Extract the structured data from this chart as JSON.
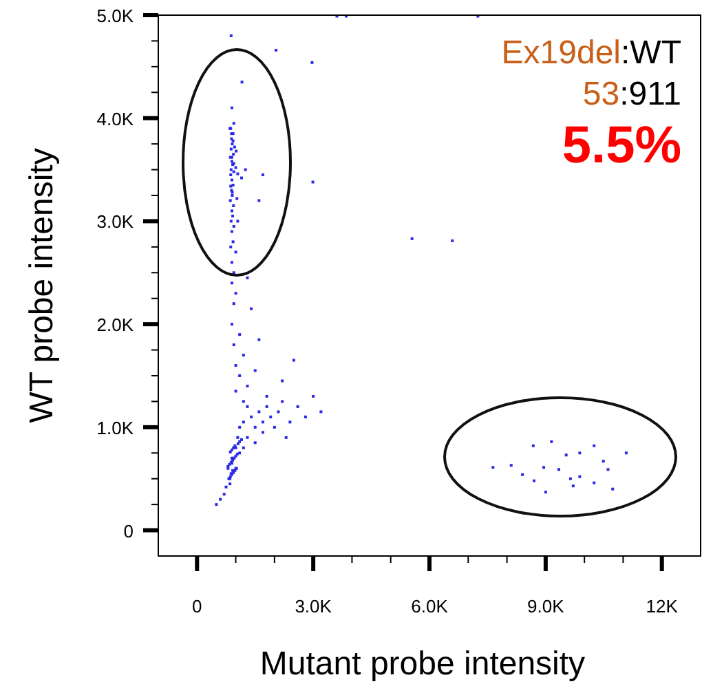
{
  "chart_data": {
    "type": "scatter",
    "xlabel": "Mutant probe intensity",
    "ylabel": "WT probe intensity",
    "annotations": [
      "Ex19del:WT",
      "53:911",
      "5.5%"
    ],
    "xlim": [
      -1000,
      13000
    ],
    "ylim": [
      -250,
      5000
    ],
    "xticks": [
      0,
      {
        "value": 1000,
        "label": null
      },
      {
        "value": 2000,
        "label": null
      },
      {
        "value": 3000,
        "label": "3.0K"
      },
      {
        "value": 4000,
        "label": null
      },
      {
        "value": 5000,
        "label": null
      },
      {
        "value": 6000,
        "label": "6.0K"
      },
      {
        "value": 7000,
        "label": null
      },
      {
        "value": 8000,
        "label": null
      },
      {
        "value": 9000,
        "label": "9.0K"
      },
      {
        "value": 10000,
        "label": null
      },
      {
        "value": 11000,
        "label": null
      },
      {
        "value": 12000,
        "label": "12K"
      }
    ],
    "yticks": [
      0,
      {
        "value": 250,
        "label": null
      },
      {
        "value": 500,
        "label": null
      },
      {
        "value": 750,
        "label": null
      },
      {
        "value": 1000,
        "label": "1.0K"
      },
      {
        "value": 1250,
        "label": null
      },
      {
        "value": 1500,
        "label": null
      },
      {
        "value": 1750,
        "label": null
      },
      {
        "value": 2000,
        "label": "2.0K"
      },
      {
        "value": 2250,
        "label": null
      },
      {
        "value": 2500,
        "label": null
      },
      {
        "value": 2750,
        "label": null
      },
      {
        "value": 3000,
        "label": "3.0K"
      },
      {
        "value": 3250,
        "label": null
      },
      {
        "value": 3500,
        "label": null
      },
      {
        "value": 3750,
        "label": null
      },
      {
        "value": 4000,
        "label": "4.0K"
      },
      {
        "value": 4250,
        "label": null
      },
      {
        "value": 4500,
        "label": null
      },
      {
        "value": 4750,
        "label": null
      },
      {
        "value": 5000,
        "label": "5.0K"
      }
    ],
    "grid": false,
    "marker": "square",
    "series": [
      {
        "color": "#2a2ae6",
        "x": [
          900,
          950,
          870,
          930,
          890,
          910,
          880,
          940,
          860,
          900,
          920,
          880,
          950,
          870,
          900,
          930,
          890,
          910,
          860,
          940,
          900,
          920,
          880,
          950,
          900,
          930,
          870,
          1000,
          900,
          950,
          1050,
          1250,
          1700,
          1600,
          880,
          2040,
          2970,
          1160,
          2990,
          5550,
          6590,
          3610,
          3850,
          7250,
          900,
          1000,
          1300,
          950,
          1400,
          900,
          1100,
          1600,
          950,
          1200,
          1000,
          1500,
          1100,
          1300,
          1800,
          1000,
          2200,
          2500,
          1200,
          800,
          850,
          900,
          950,
          1000,
          880,
          920,
          850,
          1050,
          1100,
          1200,
          1300,
          1400,
          1500,
          1600,
          1700,
          1800,
          1900,
          2000,
          2100,
          2200,
          2400,
          2600,
          2800,
          3000,
          3200,
          1300,
          1100,
          1000,
          900,
          700,
          600,
          500,
          750,
          1200,
          1500,
          2300,
          1700,
          7640,
          8110,
          8680,
          9150,
          9530,
          9880,
          10250,
          10490,
          10730,
          11080,
          9000,
          9710,
          10250,
          8400,
          8700,
          9340,
          9640,
          10610,
          8950,
          9880,
          820,
          860,
          900,
          940,
          980,
          1020,
          800,
          840,
          880,
          920,
          960,
          1000,
          1040,
          860,
          900,
          940,
          980,
          1060,
          1100,
          1150,
          850,
          890,
          930,
          970,
          1010,
          900,
          950,
          1000,
          1050,
          1150,
          870,
          910,
          1030
        ],
        "values": [
          4100,
          3950,
          3900,
          3850,
          3800,
          3750,
          3700,
          3650,
          3620,
          3580,
          3550,
          3500,
          3480,
          3450,
          3400,
          3350,
          3300,
          3250,
          3200,
          3150,
          3100,
          3050,
          3000,
          2950,
          2900,
          2800,
          2750,
          2700,
          2600,
          2500,
          3000,
          3500,
          3450,
          3200,
          4800,
          4660,
          4540,
          4350,
          3380,
          2830,
          2810,
          4990,
          4990,
          4990,
          2400,
          2300,
          2450,
          2200,
          2150,
          2000,
          1900,
          1850,
          1800,
          1700,
          1600,
          1550,
          1500,
          1400,
          1300,
          1350,
          1450,
          1650,
          1250,
          600,
          500,
          650,
          700,
          800,
          550,
          580,
          450,
          900,
          1000,
          1050,
          900,
          1100,
          1000,
          1150,
          1050,
          1200,
          1100,
          1000,
          1150,
          1250,
          1050,
          1200,
          1100,
          1300,
          1150,
          1200,
          750,
          600,
          700,
          350,
          300,
          250,
          420,
          800,
          850,
          900,
          950,
          610,
          630,
          820,
          860,
          730,
          750,
          820,
          670,
          400,
          750,
          370,
          430,
          460,
          540,
          480,
          590,
          500,
          590,
          610,
          520,
          500,
          520,
          540,
          560,
          580,
          600,
          620,
          640,
          660,
          680,
          700,
          720,
          740,
          760,
          780,
          800,
          820,
          840,
          860,
          880,
          3900,
          3850,
          3780,
          3720,
          3680,
          3620,
          3560,
          3520,
          3460,
          3420,
          3340,
          3280,
          3220
        ]
      }
    ]
  }
}
